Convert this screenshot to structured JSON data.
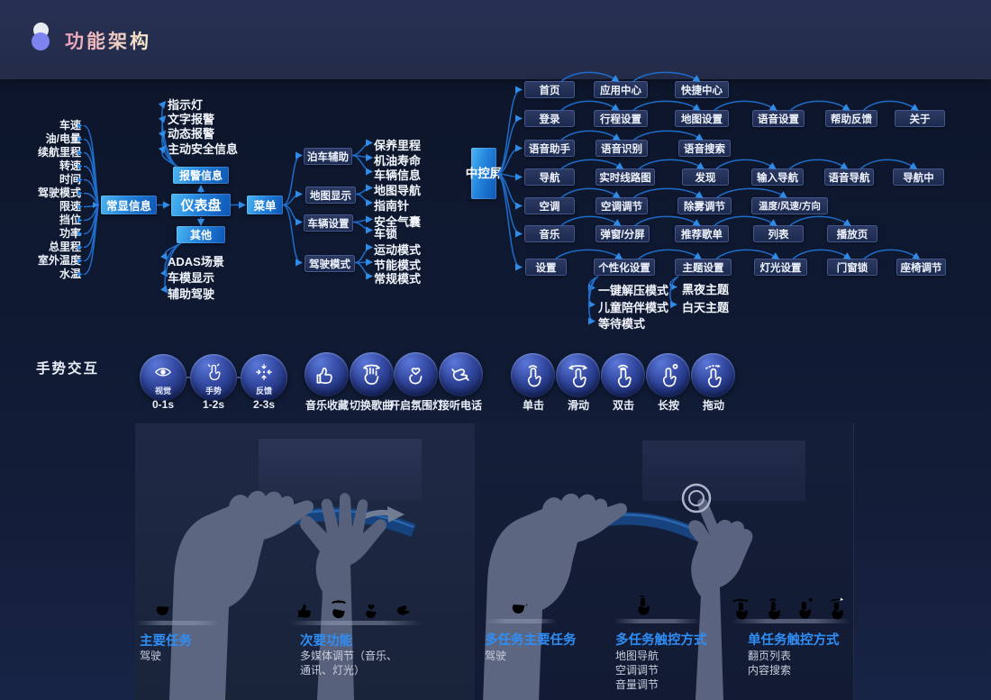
{
  "header": {
    "title": "功能架构"
  },
  "dashboard_map": {
    "always_label": "常显信息",
    "always_items": [
      "车速",
      "油/电量",
      "续航里程",
      "转速",
      "时间",
      "驾驶模式",
      "限速",
      "挡位",
      "功率",
      "总里程",
      "室外温度",
      "水温"
    ],
    "cluster_label": "仪表盘",
    "alarm_label": "报警信息",
    "alarm_items": [
      "指示灯",
      "文字报警",
      "动态报警",
      "主动安全信息"
    ],
    "other_label": "其他",
    "other_items": [
      "ADAS场景",
      "车模显示",
      "辅助驾驶"
    ],
    "menu_label": "菜单",
    "menu_groups": [
      {
        "label": "泊车辅助",
        "items": [
          "保养里程",
          "机油寿命",
          "车辆信息"
        ]
      },
      {
        "label": "地图显示",
        "items": [
          "地图导航",
          "指南针"
        ]
      },
      {
        "label": "车辆设置",
        "items": [
          "安全气囊",
          "车锁"
        ]
      },
      {
        "label": "驾驶模式",
        "items": [
          "运动模式",
          "节能模式",
          "常规模式"
        ]
      }
    ]
  },
  "center_screen": {
    "label": "中控屏",
    "rows": [
      [
        "首页",
        "应用中心",
        "快捷中心"
      ],
      [
        "登录",
        "行程设置",
        "地图设置",
        "语音设置",
        "帮助反馈",
        "关于"
      ],
      [
        "语音助手",
        "语音识别",
        "语音搜索"
      ],
      [
        "导航",
        "实时线路图",
        "发现",
        "输入导航",
        "语音导航",
        "导航中"
      ],
      [
        "空调",
        "空调调节",
        "除雾调节",
        "温度/风速/方向"
      ],
      [
        "音乐",
        "弹窗/分屏",
        "推荐歌单",
        "列表",
        "播放页"
      ],
      [
        "设置",
        "个性化设置",
        "主题设置",
        "灯光设置",
        "门窗锁",
        "座椅调节"
      ]
    ],
    "personal_items": [
      "一键解压模式",
      "儿童陪伴模式",
      "等待模式"
    ],
    "theme_items": [
      "黑夜主题",
      "白天主题"
    ]
  },
  "gesture": {
    "title": "手势交互",
    "stages": [
      {
        "label": "视觉",
        "time": "0-1s",
        "icon": "eye-icon"
      },
      {
        "label": "手势",
        "time": "1-2s",
        "icon": "gesture-icon"
      },
      {
        "label": "反馈",
        "time": "2-3s",
        "icon": "feedback-icon"
      }
    ],
    "actions": [
      {
        "label": "音乐收藏",
        "icon": "thumbs-up-icon"
      },
      {
        "label": "切换歌曲",
        "icon": "swipe-hand-icon"
      },
      {
        "label": "开启氛围灯",
        "icon": "finger-heart-icon"
      },
      {
        "label": "接听电话",
        "icon": "call-hand-icon"
      }
    ],
    "touches": [
      {
        "label": "单击",
        "icon": "tap-icon"
      },
      {
        "label": "滑动",
        "icon": "slide-icon"
      },
      {
        "label": "双击",
        "icon": "double-tap-icon"
      },
      {
        "label": "长按",
        "icon": "long-press-icon"
      },
      {
        "label": "拖动",
        "icon": "drag-icon"
      }
    ]
  },
  "panels": {
    "left": {
      "captions": [
        {
          "title": "主要任务",
          "lines": [
            "驾驶"
          ]
        },
        {
          "title": "次要功能",
          "lines": [
            "多媒体调节（音乐、",
            "通讯、灯光）"
          ]
        }
      ]
    },
    "right": {
      "captions": [
        {
          "title": "多任务主要任务",
          "lines": [
            "驾驶"
          ]
        },
        {
          "title": "多任务触控方式",
          "lines": [
            "地图导航",
            "空调调节",
            "音量调节"
          ]
        },
        {
          "title": "单任务触控方式",
          "lines": [
            "翻页列表",
            "内容搜索"
          ]
        }
      ]
    }
  },
  "colors": {
    "accent_blue": "#2f8ef5",
    "node_gradient": [
      "#4cb6f2",
      "#0d55b4"
    ],
    "line": "#1f6cc9",
    "title_gradient": [
      "#ec9fba",
      "#f4ecc9"
    ]
  }
}
